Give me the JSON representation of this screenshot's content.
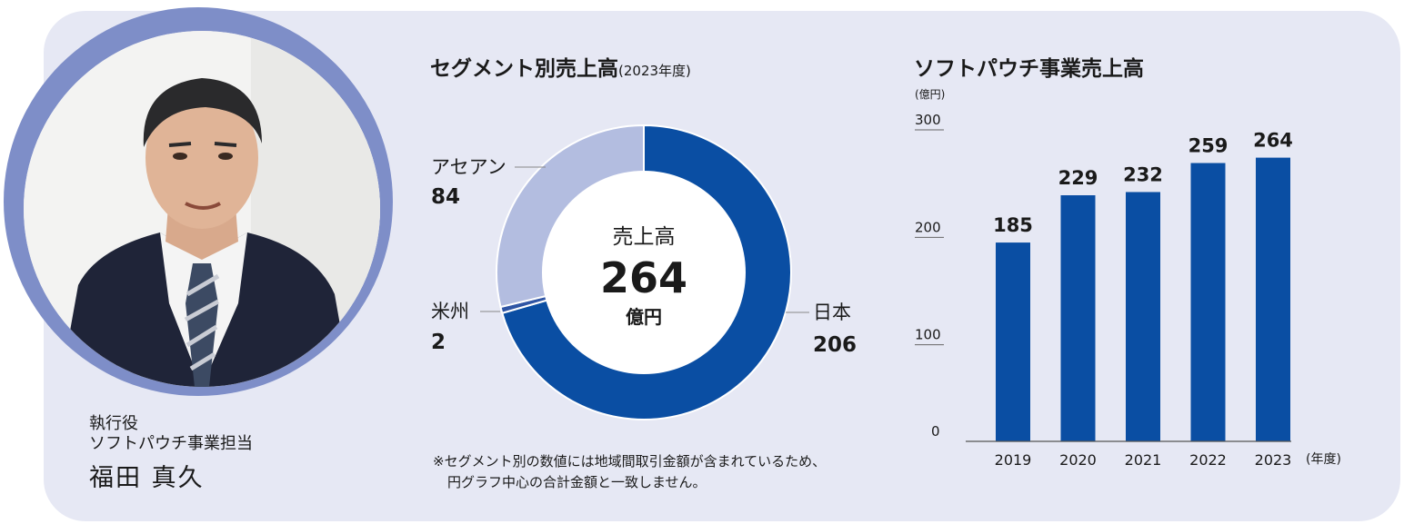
{
  "person": {
    "role_line1": "執行役",
    "role_line2": "ソフトパウチ事業担当",
    "name": "福田 真久"
  },
  "colors": {
    "panel": "#e6e8f4",
    "accent": "#0a4ea3",
    "light_segment": "#b3bde0",
    "ring": "#7e8ec8"
  },
  "note": {
    "line1": "※セグメント別の数値には地域間取引金額が含まれているため、",
    "line2": "円グラフ中心の合計金額と一致しません。"
  },
  "chart_data": [
    {
      "type": "pie",
      "title": "セグメント別売上高",
      "subtitle": "(2023年度)",
      "center_label": "売上高",
      "center_value": "264",
      "center_unit": "億円",
      "slices": [
        {
          "label": "日本",
          "value": 206,
          "color": "#0a4ea3"
        },
        {
          "label": "米州",
          "value": 2,
          "color": "#2f55a4"
        },
        {
          "label": "アセアン",
          "value": 84,
          "color": "#b3bde0"
        }
      ]
    },
    {
      "type": "bar",
      "title": "ソフトパウチ事業売上高",
      "ylabel": "(億円)",
      "xlabel": "(年度)",
      "ylim": [
        0,
        300
      ],
      "yticks": [
        "0",
        "100",
        "200",
        "300"
      ],
      "categories": [
        "2019",
        "2020",
        "2021",
        "2022",
        "2023"
      ],
      "values": [
        185,
        229,
        232,
        259,
        264
      ],
      "bar_color": "#0a4ea3"
    }
  ]
}
